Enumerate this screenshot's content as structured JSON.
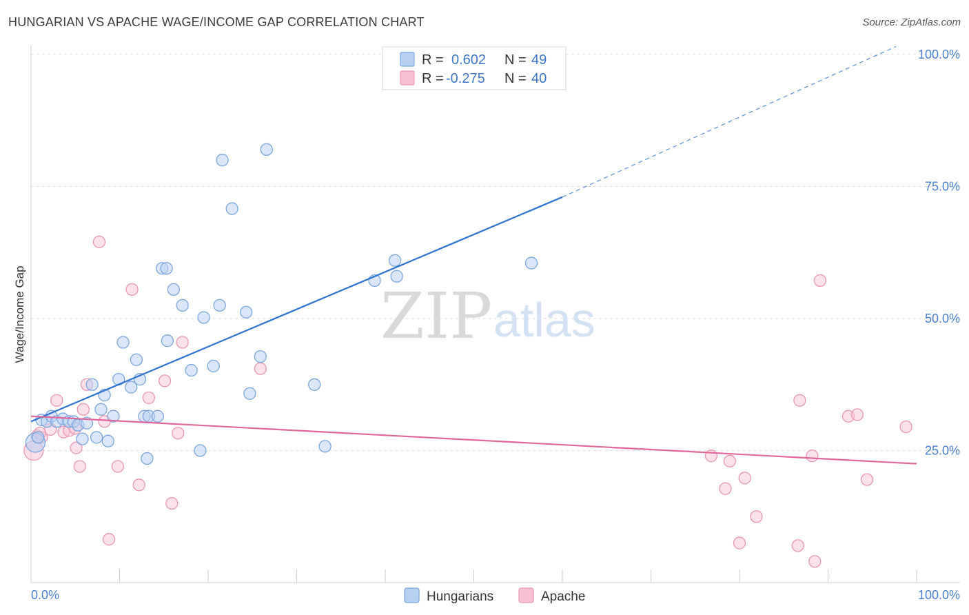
{
  "title": "HUNGARIAN VS APACHE WAGE/INCOME GAP CORRELATION CHART",
  "source": "Source: ZipAtlas.com",
  "watermark": {
    "zip": "ZIP",
    "atlas": "atlas"
  },
  "colors": {
    "hungarian_fill": "#b7d0f2",
    "hungarian_stroke": "#7aa6de",
    "hungarian_line": "#2f73d0",
    "apache_fill": "#f7c3d4",
    "apache_stroke": "#e996b2",
    "apache_line": "#e2679a",
    "grid": "#dddddd",
    "tick_text": "#4a7fd0"
  },
  "legend": {
    "rows": [
      {
        "r_label": "R =",
        "r_value": "0.602",
        "n_label": "N =",
        "n_value": "49"
      },
      {
        "r_label": "R =",
        "r_value": "-0.275",
        "n_label": "N =",
        "n_value": "40"
      }
    ]
  },
  "chart_data": {
    "type": "scatter",
    "title": "HUNGARIAN VS APACHE WAGE/INCOME GAP CORRELATION CHART",
    "xlabel": "",
    "ylabel": "Wage/Income Gap",
    "xlim": [
      0,
      100
    ],
    "ylim": [
      0,
      100
    ],
    "x_tick_labels": [
      "0.0%",
      "100.0%"
    ],
    "y_ticks": [
      25,
      50,
      75,
      100
    ],
    "y_tick_labels": [
      "25.0%",
      "50.0%",
      "75.0%",
      "100.0%"
    ],
    "grid": true,
    "legend_position": "top-center",
    "series": [
      {
        "name": "Hungarians",
        "trend": {
          "x0": 0,
          "y0": 30.5,
          "x1": 60,
          "y1": 73,
          "extend_to_x": 100,
          "extend_to_y": 101.5
        },
        "points": [
          [
            0.5,
            26.5
          ],
          [
            0.8,
            27.5
          ],
          [
            1.2,
            30.8
          ],
          [
            1.8,
            30.5
          ],
          [
            2.3,
            31.5
          ],
          [
            2.9,
            30.5
          ],
          [
            3.6,
            31
          ],
          [
            4.3,
            30.5
          ],
          [
            4.8,
            30.5
          ],
          [
            5.3,
            29.8
          ],
          [
            5.8,
            27.2
          ],
          [
            6.3,
            30.2
          ],
          [
            6.9,
            37.5
          ],
          [
            7.4,
            27.5
          ],
          [
            7.9,
            32.8
          ],
          [
            8.3,
            35.5
          ],
          [
            8.7,
            26.8
          ],
          [
            9.3,
            31.5
          ],
          [
            9.9,
            38.5
          ],
          [
            10.4,
            45.5
          ],
          [
            11.3,
            37
          ],
          [
            11.9,
            42.2
          ],
          [
            12.3,
            38.5
          ],
          [
            12.8,
            31.5
          ],
          [
            13.1,
            23.5
          ],
          [
            13.3,
            31.5
          ],
          [
            14.3,
            31.5
          ],
          [
            14.8,
            59.5
          ],
          [
            15.3,
            59.5
          ],
          [
            15.4,
            45.8
          ],
          [
            16.1,
            55.5
          ],
          [
            17.1,
            52.5
          ],
          [
            18.1,
            40.2
          ],
          [
            19.1,
            25
          ],
          [
            19.5,
            50.2
          ],
          [
            20.6,
            41
          ],
          [
            21.3,
            52.5
          ],
          [
            21.6,
            80
          ],
          [
            22.7,
            70.8
          ],
          [
            24.7,
            35.8
          ],
          [
            24.3,
            51.2
          ],
          [
            25.9,
            42.8
          ],
          [
            26.6,
            82
          ],
          [
            32.0,
            37.5
          ],
          [
            33.2,
            25.8
          ],
          [
            38.8,
            57.2
          ],
          [
            41.1,
            61
          ],
          [
            41.3,
            58
          ],
          [
            56.5,
            60.5
          ]
        ]
      },
      {
        "name": "Apache",
        "trend": {
          "x0": 0,
          "y0": 31.5,
          "x1": 100,
          "y1": 22.5
        },
        "points": [
          [
            0.3,
            25
          ],
          [
            0.7,
            27.8
          ],
          [
            1.2,
            27.5
          ],
          [
            2.2,
            29
          ],
          [
            2.9,
            34.5
          ],
          [
            3.7,
            28.5
          ],
          [
            4.3,
            28.8
          ],
          [
            5.1,
            25.5
          ],
          [
            5.5,
            22
          ],
          [
            5.9,
            32.8
          ],
          [
            6.3,
            37.5
          ],
          [
            7.7,
            64.5
          ],
          [
            8.3,
            30.5
          ],
          [
            8.8,
            8.2
          ],
          [
            9.8,
            22
          ],
          [
            11.4,
            55.5
          ],
          [
            12.2,
            18.5
          ],
          [
            13.3,
            35
          ],
          [
            15.1,
            38.2
          ],
          [
            15.9,
            15
          ],
          [
            16.6,
            28.3
          ],
          [
            17.1,
            45.5
          ],
          [
            25.9,
            40.5
          ],
          [
            76.8,
            24
          ],
          [
            78.4,
            17.8
          ],
          [
            78.9,
            23
          ],
          [
            80.6,
            19.8
          ],
          [
            81.9,
            12.5
          ],
          [
            80.0,
            7.5
          ],
          [
            86.8,
            34.5
          ],
          [
            86.6,
            7
          ],
          [
            88.2,
            24
          ],
          [
            88.5,
            4
          ],
          [
            89.1,
            57.2
          ],
          [
            92.3,
            31.5
          ],
          [
            93.3,
            31.8
          ],
          [
            94.4,
            19.5
          ],
          [
            98.8,
            29.5
          ],
          [
            1.0,
            28.3
          ],
          [
            5.0,
            29.2
          ]
        ]
      }
    ]
  }
}
